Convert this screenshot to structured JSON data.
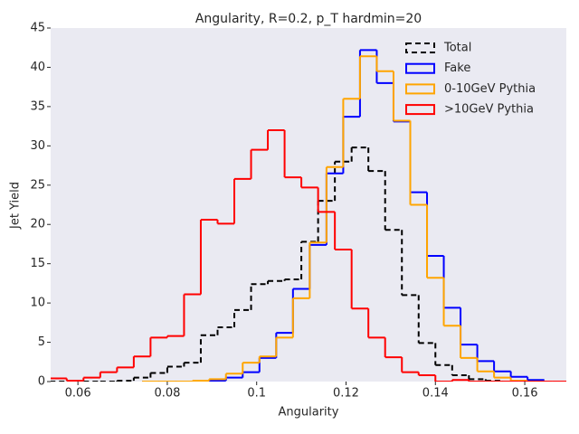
{
  "chart_data": {
    "type": "histogram",
    "title": "Angularity, R=0.2, p_T hardmin=20",
    "xlabel": "Angularity",
    "ylabel": "Jet Yield",
    "xlim": [
      0.0539,
      0.1693
    ],
    "ylim": [
      0,
      45
    ],
    "xticks": [
      0.06,
      0.08,
      0.1,
      0.12,
      0.14,
      0.16
    ],
    "yticks": [
      0,
      5,
      10,
      15,
      20,
      25,
      30,
      35,
      40,
      45
    ],
    "grid": false,
    "legend": "upper right",
    "series": [
      {
        "name": "Total",
        "color": "#000000",
        "dashed": true,
        "bins": [
          0.05,
          0.05375,
          0.0575,
          0.06125,
          0.065,
          0.06875,
          0.0725,
          0.07625,
          0.08,
          0.08375,
          0.0875,
          0.09125,
          0.095,
          0.09875,
          0.1025,
          0.10625,
          0.11,
          0.11375,
          0.1175,
          0.12125,
          0.125,
          0.12875,
          0.1325,
          0.13625,
          0.14,
          0.14375,
          0.1475,
          0.15125,
          0.155,
          0.15875,
          0.1625,
          0.16625,
          0.17
        ],
        "values": [
          0,
          0,
          0,
          0,
          0,
          0.1,
          0.5,
          1.1,
          1.9,
          2.4,
          5.9,
          6.9,
          9.1,
          12.4,
          12.8,
          13.0,
          17.8,
          23.0,
          28.0,
          29.8,
          26.8,
          19.3,
          11.0,
          4.9,
          2.1,
          0.8,
          0.3,
          0.1,
          0,
          0,
          0,
          0
        ]
      },
      {
        "name": "Fake",
        "color": "#0000ff",
        "dashed": false,
        "bins": [
          0.074375,
          0.078125,
          0.081875,
          0.085625,
          0.089375,
          0.093125,
          0.096875,
          0.100625,
          0.104375,
          0.108125,
          0.111875,
          0.115625,
          0.119375,
          0.123125,
          0.126875,
          0.130625,
          0.134375,
          0.138125,
          0.141875,
          0.145625,
          0.149375,
          0.153125,
          0.156875,
          0.160625,
          0.164375
        ],
        "values": [
          0,
          0,
          0,
          0,
          0.1,
          0.5,
          1.2,
          3.0,
          6.2,
          11.8,
          17.4,
          26.5,
          33.7,
          42.2,
          38.0,
          33.1,
          24.1,
          16.0,
          9.4,
          4.7,
          2.6,
          1.3,
          0.6,
          0.2
        ]
      },
      {
        "name": "0-10GeV Pythia",
        "color": "#ffa500",
        "dashed": false,
        "bins": [
          0.074375,
          0.078125,
          0.081875,
          0.085625,
          0.089375,
          0.093125,
          0.096875,
          0.100625,
          0.104375,
          0.108125,
          0.111875,
          0.115625,
          0.119375,
          0.123125,
          0.126875,
          0.130625,
          0.134375,
          0.138125,
          0.141875,
          0.145625,
          0.149375,
          0.153125,
          0.156875,
          0.160625,
          0.164375
        ],
        "values": [
          0,
          0,
          0,
          0.1,
          0.3,
          1.0,
          2.4,
          3.2,
          5.6,
          10.6,
          17.7,
          27.3,
          36.0,
          41.4,
          39.5,
          33.2,
          22.5,
          13.2,
          7.1,
          3.0,
          1.3,
          0.5,
          0.1,
          0
        ]
      },
      {
        "name": ">10GeV Pythia",
        "color": "#ff0000",
        "dashed": false,
        "bins": [
          0.05,
          0.05375,
          0.0575,
          0.06125,
          0.065,
          0.06875,
          0.0725,
          0.07625,
          0.08,
          0.08375,
          0.0875,
          0.09125,
          0.095,
          0.09875,
          0.1025,
          0.10625,
          0.11,
          0.11375,
          0.1175,
          0.12125,
          0.125,
          0.12875,
          0.1325,
          0.13625,
          0.14,
          0.14375,
          0.1475,
          0.15125,
          0.155,
          0.15875,
          0.1625,
          0.16625,
          0.17
        ],
        "values": [
          0.3,
          0.4,
          0.1,
          0.5,
          1.2,
          1.8,
          3.2,
          5.6,
          5.8,
          11.1,
          20.6,
          20.1,
          25.8,
          29.5,
          32.0,
          26.0,
          24.7,
          21.6,
          16.8,
          9.3,
          5.6,
          3.1,
          1.2,
          0.8,
          0,
          0.2,
          0,
          0,
          0,
          0,
          0,
          0
        ]
      }
    ]
  }
}
